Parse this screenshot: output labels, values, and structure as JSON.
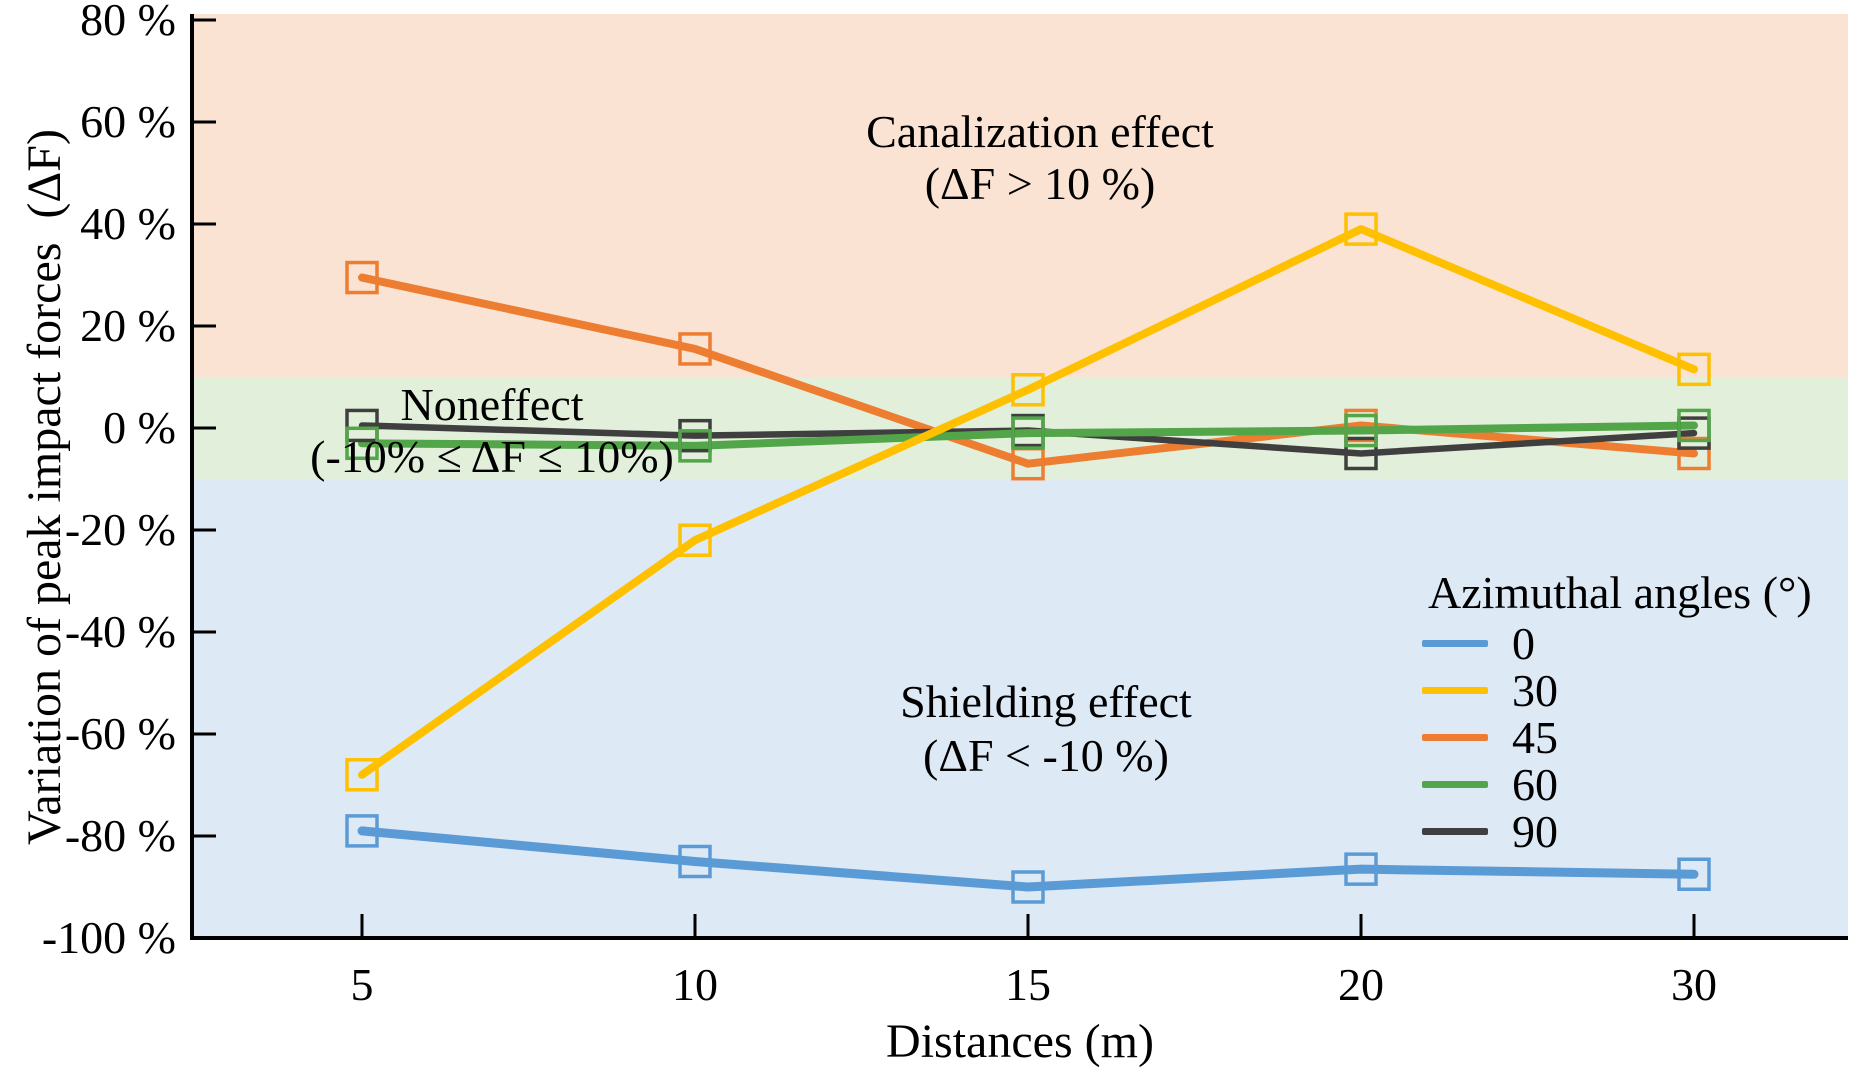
{
  "figure": {
    "xlabel": "Distances (m)",
    "ylabel": "Variation of peak impact forces  (ΔF)"
  },
  "chart_data": {
    "type": "line",
    "title": "",
    "xlabel": "Distances (m)",
    "ylabel": "Variation of peak impact forces (ΔF)",
    "x_categories": [
      "5",
      "10",
      "15",
      "20",
      "30"
    ],
    "ylim": [
      -100,
      80
    ],
    "grid": false,
    "y_ticks": [
      {
        "value": 80,
        "label": "80 %"
      },
      {
        "value": 60,
        "label": "60 %"
      },
      {
        "value": 40,
        "label": "40 %"
      },
      {
        "value": 20,
        "label": "20 %"
      },
      {
        "value": 0,
        "label": "0 %"
      },
      {
        "value": -20,
        "label": "-20 %"
      },
      {
        "value": -40,
        "label": "-40 %"
      },
      {
        "value": -60,
        "label": "-60 %"
      },
      {
        "value": -80,
        "label": "-80 %"
      },
      {
        "value": -100,
        "label": "-100 %"
      }
    ],
    "bands": [
      {
        "name": "canalization-band",
        "from": 10,
        "to": 80,
        "color": "#FAE3D3"
      },
      {
        "name": "noneffect-band",
        "from": -10,
        "to": 10,
        "color": "#E2EFDA"
      },
      {
        "name": "shielding-band",
        "from": -100,
        "to": -10,
        "color": "#DEE9F6"
      }
    ],
    "series": [
      {
        "name": "0",
        "color": "#5B9BD5",
        "line_width": 9,
        "values": [
          -79,
          -85,
          -90,
          -86.5,
          -87.5
        ]
      },
      {
        "name": "30",
        "color": "#FFC000",
        "line_width": 8,
        "values": [
          -68,
          -22,
          7.5,
          39,
          11.5
        ]
      },
      {
        "name": "45",
        "color": "#ED7D31",
        "line_width": 8,
        "values": [
          29.5,
          15.5,
          -7,
          0.5,
          -5
        ]
      },
      {
        "name": "60",
        "color": "#52A549",
        "line_width": 8,
        "values": [
          -3,
          -3.5,
          -1,
          -0.5,
          0.5
        ]
      },
      {
        "name": "90",
        "color": "#3F3F3F",
        "line_width": 6.5,
        "values": [
          0.5,
          -1.5,
          -0.5,
          -5,
          -1
        ]
      }
    ],
    "marker": {
      "shape": "open-square",
      "size": 30,
      "stroke_width": 3.5
    },
    "legend": {
      "title": "Azimuthal angles (°)",
      "position": "lower-right",
      "entries": [
        {
          "label": "0"
        },
        {
          "label": "30"
        },
        {
          "label": "45"
        },
        {
          "label": "60"
        },
        {
          "label": "90"
        }
      ]
    },
    "annotations": [
      {
        "name": "canalization",
        "line1": "Canalization effect",
        "line2": "(ΔF > 10 %)"
      },
      {
        "name": "noneffect",
        "line1": "Noneffect",
        "line2": "(-10% ≤ ΔF ≤ 10%)"
      },
      {
        "name": "shielding",
        "line1": "Shielding effect",
        "line2": "(ΔF < -10 %)"
      }
    ]
  }
}
